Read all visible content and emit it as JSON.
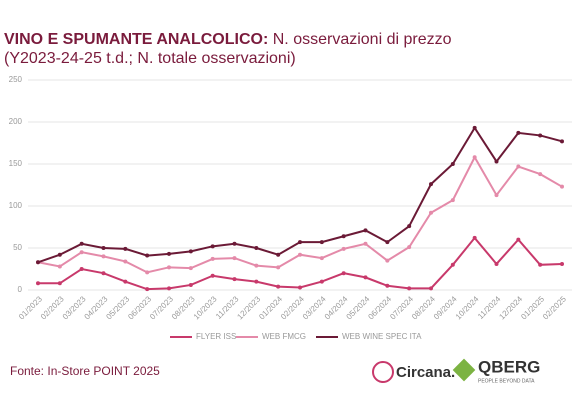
{
  "chart_data": {
    "type": "line",
    "title": "VINO E SPUMANTE ANALCOLICO:",
    "subtitle": [
      "N. osservazioni di prezzo",
      "(Y2023-24-25 t.d.; N. totale osservazioni)"
    ],
    "categories": [
      "01/2023",
      "02/2023",
      "03/2023",
      "04/2023",
      "05/2023",
      "06/2023",
      "07/2023",
      "08/2023",
      "10/2023",
      "11/2023",
      "12/2023",
      "01/2024",
      "02/2024",
      "03/2024",
      "04/2024",
      "05/2024",
      "06/2024",
      "07/2024",
      "08/2024",
      "09/2024",
      "10/2024",
      "11/2024",
      "12/2024",
      "01/2025",
      "02/2025"
    ],
    "series": [
      {
        "name": "FLYER ISS",
        "color": "#c8396b",
        "values": [
          8,
          8,
          25,
          20,
          10,
          1,
          2,
          6,
          17,
          13,
          10,
          4,
          3,
          10,
          20,
          15,
          5,
          2,
          2,
          30,
          62,
          31,
          60,
          30,
          31
        ]
      },
      {
        "name": "WEB FMCG",
        "color": "#e48aa9",
        "values": [
          33,
          28,
          45,
          40,
          34,
          21,
          27,
          26,
          37,
          38,
          29,
          27,
          42,
          38,
          49,
          55,
          35,
          51,
          92,
          107,
          158,
          113,
          147,
          138,
          123
        ]
      },
      {
        "name": "WEB WINE SPEC ITA",
        "color": "#6b1a36",
        "values": [
          33,
          42,
          55,
          50,
          49,
          41,
          43,
          46,
          52,
          55,
          50,
          42,
          57,
          57,
          64,
          71,
          57,
          76,
          126,
          150,
          193,
          153,
          187,
          184,
          177
        ]
      }
    ],
    "ylim": [
      0,
      250
    ],
    "yticks": [
      0,
      50,
      100,
      150,
      200,
      250
    ],
    "grid": true,
    "legend": "bottom",
    "source": "Fonte: In-Store POINT 2025",
    "logos": {
      "circana": "Circana.",
      "qberg": "QBERG",
      "qberg_tagline": "PEOPLE BEYOND DATA"
    }
  }
}
